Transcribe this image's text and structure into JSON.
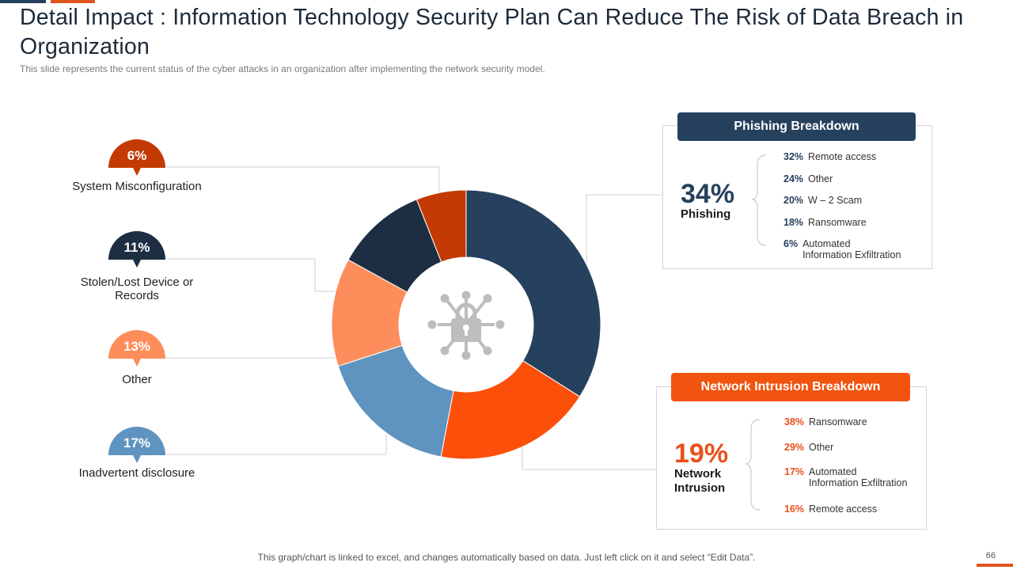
{
  "title": "Detail Impact : Information Technology Security Plan Can Reduce The Risk of Data Breach in Organization",
  "subtitle": "This slide represents the current status of the cyber attacks in an organization after implementing the network security model.",
  "footer_note": "This graph/chart is linked to excel, and changes automatically based on data. Just left click on it and select “Edit Data”.",
  "page_number": "66",
  "center_icon": "network-lock-icon",
  "chart_data": {
    "type": "pie",
    "variant": "donut",
    "title": "",
    "start_angle_deg": 0,
    "direction": "clockwise",
    "slices": [
      {
        "label": "Phishing",
        "value": 34,
        "display": "34%",
        "color": "#26415e"
      },
      {
        "label": "Network Intrusion",
        "value": 19,
        "display": "19%",
        "color": "#fc4f0a"
      },
      {
        "label": "Inadvertent disclosure",
        "value": 17,
        "display": "17%",
        "color": "#5f93c0"
      },
      {
        "label": "Other",
        "value": 13,
        "display": "13%",
        "color": "#fe8d5c"
      },
      {
        "label": "Stolen/Lost Device or Records",
        "value": 11,
        "display": "11%",
        "color": "#1e2e42"
      },
      {
        "label": "System Misconfiguration",
        "value": 6,
        "display": "6%",
        "color": "#c43a04"
      }
    ]
  },
  "phishing_panel": {
    "header": "Phishing Breakdown",
    "pct": "34%",
    "label": "Phishing",
    "items": [
      {
        "pct": "32%",
        "text": "Remote access"
      },
      {
        "pct": "24%",
        "text": "Other"
      },
      {
        "pct": "20%",
        "text": "W – 2 Scam"
      },
      {
        "pct": "18%",
        "text": "Ransomware"
      },
      {
        "pct": "6%",
        "text": "Automated Information Exfiltration"
      }
    ]
  },
  "network_panel": {
    "header": "Network Intrusion  Breakdown",
    "pct": "19%",
    "label": "Network Intrusion",
    "items": [
      {
        "pct": "38%",
        "text": "Ransomware"
      },
      {
        "pct": "29%",
        "text": "Other"
      },
      {
        "pct": "17%",
        "text": "Automated Information Exfiltration"
      },
      {
        "pct": "16%",
        "text": "Remote access"
      }
    ]
  }
}
